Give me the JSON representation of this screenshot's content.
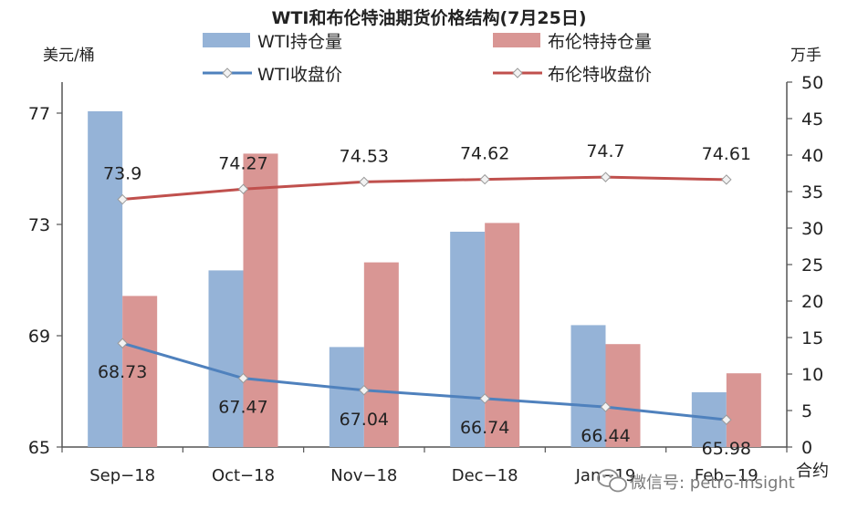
{
  "chart_data": {
    "type": "bar+line",
    "title": "WTI和布伦特油期货价格结构(7月25日)",
    "left_axis_unit": "美元/桶",
    "right_axis_unit": "万手",
    "x_axis_label": "合约",
    "categories": [
      "Sep−18",
      "Oct−18",
      "Nov−18",
      "Dec−18",
      "Jan−19",
      "Feb−19"
    ],
    "left_axis": {
      "min": 65,
      "max": 78,
      "ticks": [
        65,
        69,
        73,
        77
      ]
    },
    "right_axis": {
      "min": 0,
      "max": 50,
      "ticks": [
        0,
        5,
        10,
        15,
        20,
        25,
        30,
        35,
        40,
        45,
        50
      ]
    },
    "bar_series": [
      {
        "name": "WTI持仓量",
        "color": "#95b3d7",
        "axis": "right",
        "values": [
          46,
          24.2,
          13.7,
          29.5,
          16.7,
          7.5
        ]
      },
      {
        "name": "布伦特持仓量",
        "color": "#d99694",
        "axis": "right",
        "values": [
          20.7,
          40.2,
          25.3,
          30.7,
          14.1,
          10.1
        ]
      }
    ],
    "line_series": [
      {
        "name": "WTI收盘价",
        "color": "#4f81bd",
        "axis": "left",
        "values": [
          68.73,
          67.47,
          67.04,
          66.74,
          66.44,
          65.98
        ],
        "labels": [
          "68.73",
          "67.47",
          "67.04",
          "66.74",
          "66.44",
          "65.98"
        ]
      },
      {
        "name": "布伦特收盘价",
        "color": "#c0504d",
        "axis": "left",
        "values": [
          73.9,
          74.27,
          74.53,
          74.62,
          74.7,
          74.61
        ],
        "labels": [
          "73.9",
          "74.27",
          "74.53",
          "74.62",
          "74.7",
          "74.61"
        ]
      }
    ],
    "legend_position": "top",
    "grid": false
  },
  "watermark": "微信号: petro-insight"
}
